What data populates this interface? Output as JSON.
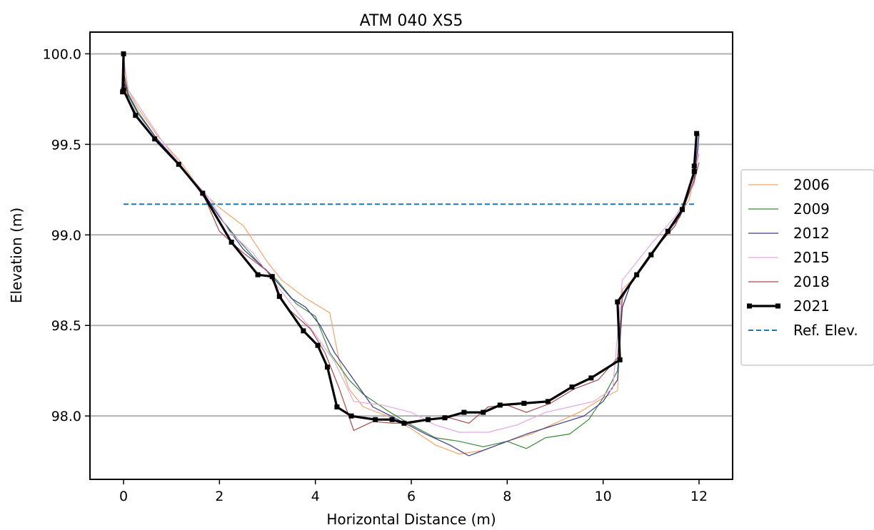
{
  "chart_data": {
    "type": "line",
    "title": "ATM 040 XS5",
    "xlabel": "Horizontal Distance (m)",
    "ylabel": "Elevation (m)",
    "xlim": [
      -0.7,
      12.7
    ],
    "ylim": [
      97.65,
      100.12
    ],
    "xticks": [
      0,
      2,
      4,
      6,
      8,
      10,
      12
    ],
    "xtick_labels": [
      "0",
      "2",
      "4",
      "6",
      "8",
      "10",
      "12"
    ],
    "yticks": [
      98.0,
      98.5,
      99.0,
      99.5,
      100.0
    ],
    "ytick_labels": [
      "98.0",
      "98.5",
      "99.0",
      "99.5",
      "100.0"
    ],
    "grid": "horizontal",
    "legend_position": "outside-right",
    "series": [
      {
        "name": "2006",
        "color": "#f2a36b",
        "style": "thin",
        "points": [
          [
            0.0,
            99.95
          ],
          [
            0.1,
            99.8
          ],
          [
            0.3,
            99.7
          ],
          [
            0.7,
            99.55
          ],
          [
            1.2,
            99.4
          ],
          [
            1.6,
            99.25
          ],
          [
            2.0,
            99.15
          ],
          [
            2.5,
            99.05
          ],
          [
            3.0,
            98.85
          ],
          [
            3.3,
            98.75
          ],
          [
            3.8,
            98.65
          ],
          [
            4.3,
            98.57
          ],
          [
            4.5,
            98.3
          ],
          [
            4.7,
            98.15
          ],
          [
            5.0,
            98.05
          ],
          [
            5.5,
            98.0
          ],
          [
            6.0,
            97.93
          ],
          [
            6.5,
            97.84
          ],
          [
            7.0,
            97.79
          ],
          [
            7.5,
            97.81
          ],
          [
            8.0,
            97.86
          ],
          [
            8.5,
            97.9
          ],
          [
            9.0,
            97.96
          ],
          [
            9.5,
            98.02
          ],
          [
            10.0,
            98.1
          ],
          [
            10.3,
            98.14
          ],
          [
            10.4,
            98.7
          ],
          [
            10.6,
            98.75
          ],
          [
            11.0,
            98.9
          ],
          [
            11.5,
            99.05
          ],
          [
            11.8,
            99.2
          ],
          [
            12.0,
            99.45
          ]
        ]
      },
      {
        "name": "2009",
        "color": "#3a8a3a",
        "style": "thin",
        "points": [
          [
            0.0,
            99.9
          ],
          [
            0.1,
            99.78
          ],
          [
            0.3,
            99.68
          ],
          [
            0.7,
            99.53
          ],
          [
            1.2,
            99.38
          ],
          [
            1.6,
            99.25
          ],
          [
            2.0,
            99.1
          ],
          [
            2.4,
            98.97
          ],
          [
            2.8,
            98.85
          ],
          [
            3.2,
            98.75
          ],
          [
            3.6,
            98.62
          ],
          [
            4.0,
            98.55
          ],
          [
            4.3,
            98.35
          ],
          [
            4.7,
            98.2
          ],
          [
            5.0,
            98.12
          ],
          [
            5.5,
            98.03
          ],
          [
            6.0,
            97.95
          ],
          [
            6.5,
            97.88
          ],
          [
            7.0,
            97.86
          ],
          [
            7.5,
            97.83
          ],
          [
            8.0,
            97.86
          ],
          [
            8.4,
            97.82
          ],
          [
            8.8,
            97.88
          ],
          [
            9.3,
            97.9
          ],
          [
            9.7,
            97.98
          ],
          [
            10.0,
            98.1
          ],
          [
            10.3,
            98.25
          ],
          [
            10.4,
            98.6
          ],
          [
            10.6,
            98.75
          ],
          [
            11.0,
            98.9
          ],
          [
            11.5,
            99.05
          ],
          [
            11.9,
            99.3
          ],
          [
            12.0,
            99.55
          ]
        ]
      },
      {
        "name": "2012",
        "color": "#3a3a8c",
        "style": "thin",
        "points": [
          [
            0.0,
            99.85
          ],
          [
            0.1,
            99.77
          ],
          [
            0.3,
            99.67
          ],
          [
            0.7,
            99.53
          ],
          [
            1.2,
            99.38
          ],
          [
            1.7,
            99.22
          ],
          [
            2.0,
            99.1
          ],
          [
            2.5,
            98.92
          ],
          [
            3.0,
            98.8
          ],
          [
            3.5,
            98.65
          ],
          [
            3.8,
            98.6
          ],
          [
            4.1,
            98.5
          ],
          [
            4.4,
            98.35
          ],
          [
            4.8,
            98.2
          ],
          [
            5.2,
            98.05
          ],
          [
            5.8,
            97.97
          ],
          [
            6.3,
            97.9
          ],
          [
            6.8,
            97.84
          ],
          [
            7.2,
            97.78
          ],
          [
            7.8,
            97.84
          ],
          [
            8.4,
            97.9
          ],
          [
            9.0,
            97.95
          ],
          [
            9.6,
            98.0
          ],
          [
            10.0,
            98.08
          ],
          [
            10.3,
            98.2
          ],
          [
            10.4,
            98.6
          ],
          [
            10.6,
            98.75
          ],
          [
            11.0,
            98.9
          ],
          [
            11.6,
            99.1
          ],
          [
            11.9,
            99.3
          ],
          [
            12.0,
            99.56
          ]
        ]
      },
      {
        "name": "2015",
        "color": "#e3a8e3",
        "style": "thin",
        "points": [
          [
            0.0,
            99.98
          ],
          [
            0.1,
            99.8
          ],
          [
            0.4,
            99.68
          ],
          [
            0.8,
            99.52
          ],
          [
            1.3,
            99.35
          ],
          [
            1.8,
            99.2
          ],
          [
            2.2,
            99.02
          ],
          [
            2.7,
            98.9
          ],
          [
            3.2,
            98.72
          ],
          [
            3.7,
            98.55
          ],
          [
            4.0,
            98.45
          ],
          [
            4.4,
            98.3
          ],
          [
            4.8,
            98.08
          ],
          [
            5.4,
            98.06
          ],
          [
            6.0,
            98.02
          ],
          [
            6.5,
            97.95
          ],
          [
            7.0,
            97.91
          ],
          [
            7.6,
            97.91
          ],
          [
            8.2,
            97.95
          ],
          [
            8.8,
            98.02
          ],
          [
            9.3,
            98.05
          ],
          [
            9.8,
            98.08
          ],
          [
            10.2,
            98.15
          ],
          [
            10.4,
            98.75
          ],
          [
            10.7,
            98.85
          ],
          [
            11.0,
            98.95
          ],
          [
            11.5,
            99.1
          ],
          [
            11.9,
            99.28
          ],
          [
            12.0,
            99.5
          ]
        ]
      },
      {
        "name": "2018",
        "color": "#a34a4a",
        "style": "thin",
        "points": [
          [
            0.0,
            99.9
          ],
          [
            0.1,
            99.75
          ],
          [
            0.3,
            99.65
          ],
          [
            0.7,
            99.52
          ],
          [
            1.2,
            99.38
          ],
          [
            1.7,
            99.2
          ],
          [
            2.0,
            99.02
          ],
          [
            2.5,
            98.9
          ],
          [
            3.0,
            98.8
          ],
          [
            3.4,
            98.6
          ],
          [
            3.9,
            98.48
          ],
          [
            4.2,
            98.35
          ],
          [
            4.5,
            98.15
          ],
          [
            4.8,
            97.92
          ],
          [
            5.2,
            97.97
          ],
          [
            5.6,
            97.96
          ],
          [
            6.0,
            97.96
          ],
          [
            6.4,
            97.98
          ],
          [
            6.8,
            97.99
          ],
          [
            7.2,
            97.96
          ],
          [
            7.6,
            98.05
          ],
          [
            8.0,
            98.06
          ],
          [
            8.4,
            98.02
          ],
          [
            8.9,
            98.07
          ],
          [
            9.4,
            98.15
          ],
          [
            9.9,
            98.2
          ],
          [
            10.3,
            98.32
          ],
          [
            10.4,
            98.65
          ],
          [
            10.6,
            98.75
          ],
          [
            11.0,
            98.9
          ],
          [
            11.5,
            99.05
          ],
          [
            11.9,
            99.3
          ],
          [
            12.0,
            99.4
          ]
        ]
      },
      {
        "name": "2021",
        "color": "#000000",
        "style": "thick-marker",
        "points": [
          [
            -0.02,
            99.79
          ],
          [
            0.0,
            100.0
          ],
          [
            0.0,
            99.8
          ],
          [
            0.25,
            99.66
          ],
          [
            0.65,
            99.53
          ],
          [
            1.15,
            99.39
          ],
          [
            1.65,
            99.23
          ],
          [
            2.25,
            98.96
          ],
          [
            2.8,
            98.78
          ],
          [
            3.1,
            98.77
          ],
          [
            3.25,
            98.66
          ],
          [
            3.75,
            98.47
          ],
          [
            4.05,
            98.39
          ],
          [
            4.25,
            98.27
          ],
          [
            4.45,
            98.05
          ],
          [
            4.75,
            98.0
          ],
          [
            5.25,
            97.98
          ],
          [
            5.6,
            97.98
          ],
          [
            5.85,
            97.96
          ],
          [
            6.35,
            97.98
          ],
          [
            6.7,
            97.99
          ],
          [
            7.1,
            98.02
          ],
          [
            7.5,
            98.02
          ],
          [
            7.85,
            98.06
          ],
          [
            8.35,
            98.07
          ],
          [
            8.85,
            98.08
          ],
          [
            9.35,
            98.16
          ],
          [
            9.75,
            98.21
          ],
          [
            10.35,
            98.31
          ],
          [
            10.3,
            98.63
          ],
          [
            10.7,
            98.78
          ],
          [
            11.0,
            98.89
          ],
          [
            11.35,
            99.02
          ],
          [
            11.65,
            99.14
          ],
          [
            11.9,
            99.35
          ],
          [
            11.9,
            99.38
          ],
          [
            11.95,
            99.56
          ]
        ]
      },
      {
        "name": "Ref. Elev.",
        "color": "#1f77b4",
        "style": "dashed",
        "points": [
          [
            0.0,
            99.17
          ],
          [
            11.95,
            99.17
          ]
        ]
      }
    ]
  }
}
